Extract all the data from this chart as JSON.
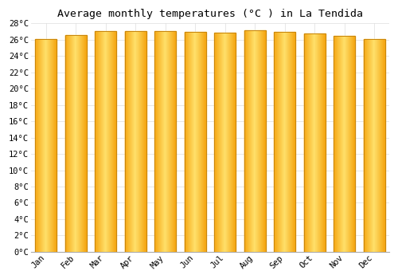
{
  "title": "Average monthly temperatures (°C ) in La Tendida",
  "months": [
    "Jan",
    "Feb",
    "Mar",
    "Apr",
    "May",
    "Jun",
    "Jul",
    "Aug",
    "Sep",
    "Oct",
    "Nov",
    "Dec"
  ],
  "values": [
    26.1,
    26.6,
    27.1,
    27.1,
    27.1,
    27.0,
    26.9,
    27.2,
    27.0,
    26.8,
    26.5,
    26.1
  ],
  "ylim": [
    0,
    28
  ],
  "yticks": [
    0,
    2,
    4,
    6,
    8,
    10,
    12,
    14,
    16,
    18,
    20,
    22,
    24,
    26,
    28
  ],
  "bar_color_center": "#FFD966",
  "bar_color_edge": "#F5A800",
  "bar_outline_color": "#C8850A",
  "background_color": "#FFFFFF",
  "grid_color": "#DDDDDD",
  "title_fontsize": 9.5,
  "tick_fontsize": 7.5,
  "font_family": "monospace"
}
